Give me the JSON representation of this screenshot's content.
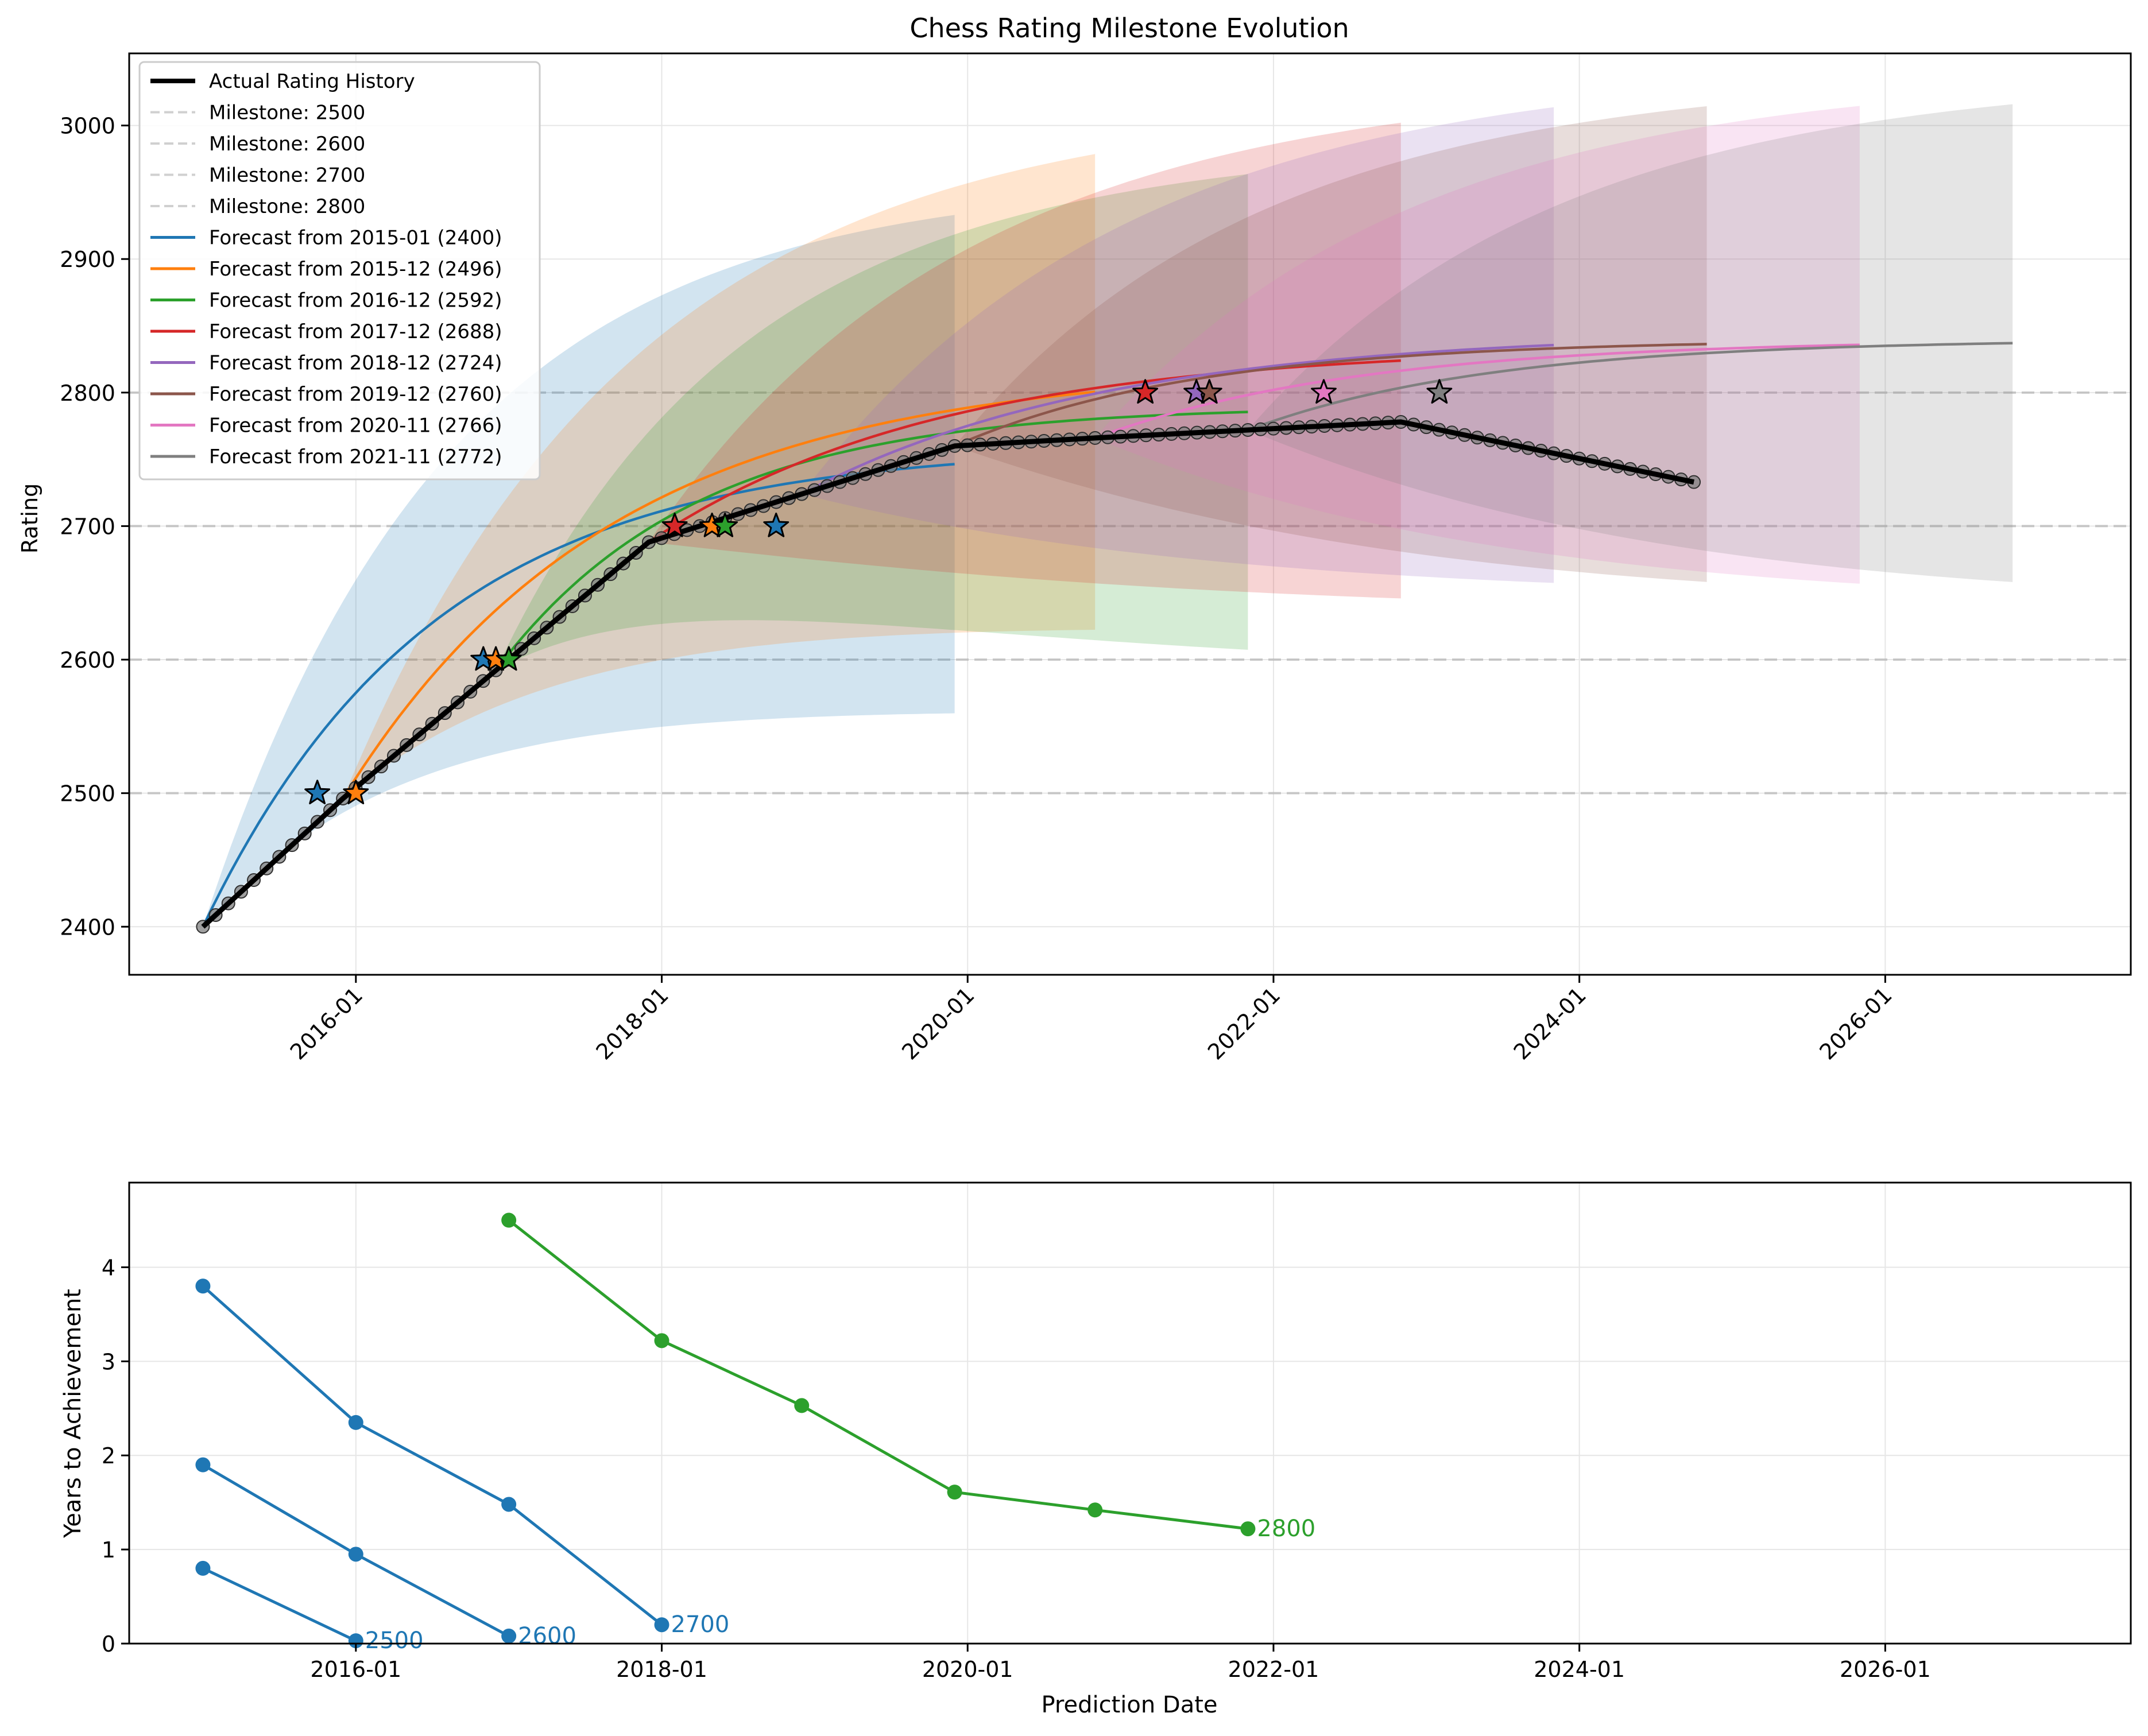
{
  "chart_data": [
    {
      "type": "line",
      "title": "Chess Rating Milestone Evolution",
      "xlabel": "",
      "ylabel": "Rating",
      "xlim": [
        "2014-07-09",
        "2027-08-10"
      ],
      "ylim": [
        2364,
        3054
      ],
      "x_ticks": [
        "2016-01",
        "2018-01",
        "2020-01",
        "2022-01",
        "2024-01",
        "2026-01"
      ],
      "y_ticks": [
        2400,
        2500,
        2600,
        2700,
        2800,
        2900,
        3000
      ],
      "grid": true,
      "legend_position": "top-left",
      "milestones": [
        2500,
        2600,
        2700,
        2800
      ],
      "milestone_color": "#b0b0b0",
      "actual": {
        "name": "Actual Rating History",
        "color": "#000000",
        "points": [
          [
            "2015-01",
            2400
          ],
          [
            "2015-12",
            2496
          ],
          [
            "2016-12",
            2592
          ],
          [
            "2017-12",
            2688
          ],
          [
            "2018-12",
            2724
          ],
          [
            "2019-12",
            2760
          ],
          [
            "2020-11",
            2766
          ],
          [
            "2021-11",
            2772
          ],
          [
            "2022-11",
            2778
          ],
          [
            "2024-10",
            2733
          ]
        ]
      },
      "series": [
        {
          "name": "Forecast from 2015-01 (2400)",
          "color": "#1f77b4",
          "start": "2015-01",
          "end": "2019-12",
          "y0": 2400,
          "asymptote": 2760,
          "tau": 1.5,
          "band": 0.55,
          "stars": [
            [
              "2015-10",
              2500
            ],
            [
              "2016-11",
              2600
            ],
            [
              "2018-10",
              2700
            ]
          ]
        },
        {
          "name": "Forecast from 2015-12 (2496)",
          "color": "#ff7f0e",
          "start": "2015-12",
          "end": "2020-11",
          "y0": 2496,
          "asymptote": 2820,
          "tau": 1.75,
          "band": 0.45,
          "stars": [
            [
              "2016-01",
              2500
            ],
            [
              "2016-12",
              2600
            ],
            [
              "2018-05",
              2700
            ]
          ]
        },
        {
          "name": "Forecast from 2016-12 (2592)",
          "color": "#2ca02c",
          "start": "2016-12",
          "end": "2021-11",
          "y0": 2592,
          "asymptote": 2790,
          "tau": 1.3,
          "band": 0.45,
          "stars": [
            [
              "2017-01",
              2600
            ],
            [
              "2018-06",
              2700
            ]
          ]
        },
        {
          "name": "Forecast from 2017-12 (2688)",
          "color": "#d62728",
          "start": "2017-12",
          "end": "2022-11",
          "y0": 2688,
          "asymptote": 2835,
          "tau": 1.9,
          "band": 0.45,
          "stars": [
            [
              "2018-02",
              2700
            ],
            [
              "2021-03",
              2800
            ]
          ]
        },
        {
          "name": "Forecast from 2018-12 (2724)",
          "color": "#9467bd",
          "start": "2018-12",
          "end": "2023-11",
          "y0": 2724,
          "asymptote": 2846,
          "tau": 2.0,
          "band": 0.45,
          "stars": [
            [
              "2021-07",
              2800
            ]
          ]
        },
        {
          "name": "Forecast from 2019-12 (2760)",
          "color": "#8c564b",
          "start": "2019-12",
          "end": "2024-11",
          "y0": 2760,
          "asymptote": 2840,
          "tau": 1.6,
          "band": 0.45,
          "stars": [
            [
              "2021-08",
              2800
            ]
          ]
        },
        {
          "name": "Forecast from 2020-11 (2766)",
          "color": "#e377c2",
          "start": "2020-11",
          "end": "2025-11",
          "y0": 2766,
          "asymptote": 2840,
          "tau": 1.75,
          "band": 0.45,
          "stars": [
            [
              "2022-05",
              2800
            ]
          ]
        },
        {
          "name": "Forecast from 2021-11 (2772)",
          "color": "#7f7f7f",
          "start": "2021-11",
          "end": "2026-11",
          "y0": 2772,
          "asymptote": 2840,
          "tau": 1.6,
          "band": 0.45,
          "stars": [
            [
              "2023-02",
              2800
            ]
          ]
        }
      ]
    },
    {
      "type": "line",
      "title": "",
      "xlabel": "Prediction Date",
      "ylabel": "Years to Achievement",
      "xlim": [
        "2014-07-09",
        "2027-08-10"
      ],
      "ylim": [
        0,
        4.9
      ],
      "x_ticks": [
        "2016-01",
        "2018-01",
        "2020-01",
        "2022-01",
        "2024-01",
        "2026-01"
      ],
      "y_ticks": [
        0,
        1,
        2,
        3,
        4
      ],
      "grid": true,
      "series": [
        {
          "name": "",
          "label": "2500",
          "color": "#1f77b4",
          "points": [
            [
              "2015-01",
              0.8
            ],
            [
              "2016-01",
              0.03
            ]
          ]
        },
        {
          "name": "",
          "label": "2600",
          "color": "#1f77b4",
          "points": [
            [
              "2015-01",
              1.9
            ],
            [
              "2016-01",
              0.95
            ],
            [
              "2017-01",
              0.08
            ]
          ]
        },
        {
          "name": "",
          "label": "2700",
          "color": "#1f77b4",
          "points": [
            [
              "2015-01",
              3.8
            ],
            [
              "2016-01",
              2.35
            ],
            [
              "2017-01",
              1.48
            ],
            [
              "2018-01",
              0.2
            ]
          ]
        },
        {
          "name": "",
          "label": "2800",
          "color": "#2ca02c",
          "points": [
            [
              "2017-01",
              4.5
            ],
            [
              "2018-01",
              3.22
            ],
            [
              "2018-12",
              2.53
            ],
            [
              "2019-12",
              1.61
            ],
            [
              "2020-11",
              1.42
            ],
            [
              "2021-11",
              1.22
            ]
          ]
        }
      ]
    }
  ]
}
